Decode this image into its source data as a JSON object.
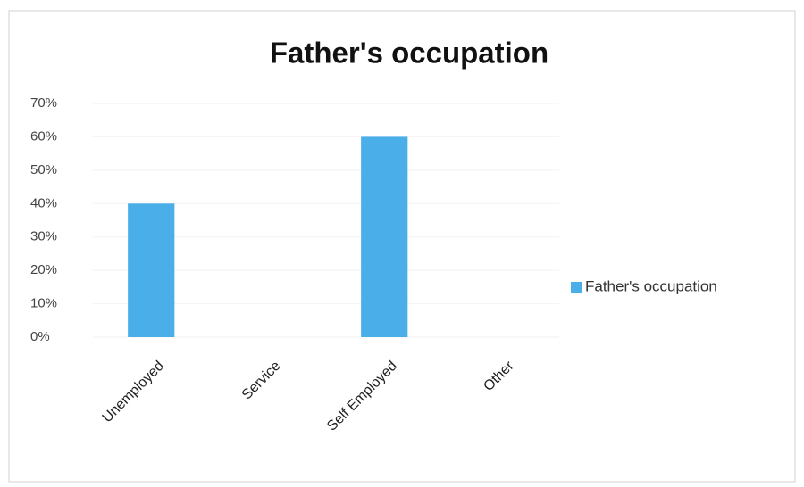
{
  "chart_data": {
    "type": "bar",
    "title": "Father's occupation",
    "categories": [
      "Unemployed",
      "Service",
      "Self Employed",
      "Other"
    ],
    "series": [
      {
        "name": "Father's occupation",
        "color": "#4aaee8",
        "values": [
          40,
          0,
          60,
          0
        ]
      }
    ],
    "ylim": [
      0,
      70
    ],
    "yticks": [
      {
        "value": 0,
        "label": "0%"
      },
      {
        "value": 10,
        "label": "10%"
      },
      {
        "value": 20,
        "label": "20%"
      },
      {
        "value": 30,
        "label": "30%"
      },
      {
        "value": 40,
        "label": "40%"
      },
      {
        "value": 50,
        "label": "50%"
      },
      {
        "value": 60,
        "label": "60%"
      },
      {
        "value": 70,
        "label": "70%"
      }
    ],
    "grid": true,
    "legend": "right"
  }
}
